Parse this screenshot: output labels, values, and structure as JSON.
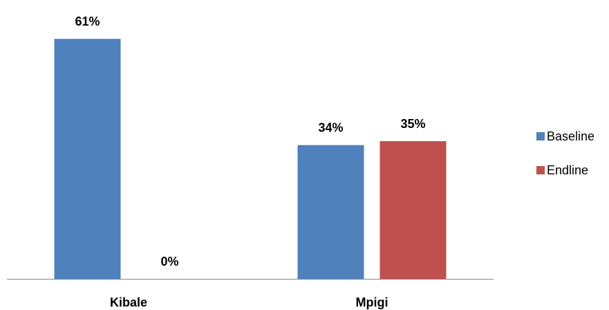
{
  "chart_data": {
    "type": "bar",
    "categories": [
      "Kibale",
      "Mpigi"
    ],
    "series": [
      {
        "name": "Baseline",
        "values": [
          61,
          34
        ],
        "color": "#4f81bd"
      },
      {
        "name": "Endline",
        "values": [
          0,
          35
        ],
        "color": "#c0504d"
      }
    ],
    "data_labels": [
      [
        "61%",
        "34%"
      ],
      [
        "0%",
        "35%"
      ]
    ],
    "title": "",
    "xlabel": "",
    "ylabel": "",
    "ylim": [
      0,
      70
    ],
    "grid": false,
    "legend_position": "right"
  }
}
